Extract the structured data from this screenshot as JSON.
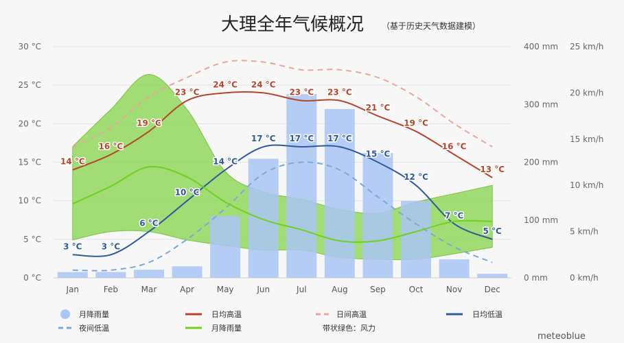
{
  "chart_data": {
    "type": "bar+line",
    "title": "大理全年气候概况",
    "subtitle": "（基于历史天气数据建模）",
    "categories": [
      "Jan",
      "Feb",
      "Mar",
      "Apr",
      "May",
      "Jun",
      "Jul",
      "Aug",
      "Sep",
      "Oct",
      "Nov",
      "Dec"
    ],
    "y_left": {
      "unit": "°C",
      "ticks": [
        "0 °C",
        "5 °C",
        "10 °C",
        "15 °C",
        "20 °C",
        "25 °C",
        "30 °C"
      ],
      "range": [
        0,
        30
      ]
    },
    "y_right1": {
      "unit": "mm",
      "ticks": [
        "0 mm",
        "100 mm",
        "200 mm",
        "300 mm",
        "400 mm"
      ],
      "range": [
        0,
        400
      ]
    },
    "y_right2": {
      "unit": "km/h",
      "ticks": [
        "0 km/h",
        "5 km/h",
        "10 km/h",
        "15 km/h",
        "20 km/h",
        "25 km/h"
      ],
      "range": [
        0,
        25
      ]
    },
    "series": [
      {
        "name": "月降雨量",
        "type": "bar",
        "axis": "mm",
        "color": "#a9c6f5",
        "values": [
          10,
          10,
          14,
          20,
          107,
          206,
          318,
          292,
          216,
          133,
          32,
          7
        ]
      },
      {
        "name": "日均高温",
        "type": "line",
        "axis": "C",
        "color": "#b5442b",
        "labels": true,
        "values": [
          14,
          16,
          19,
          23,
          24,
          24,
          23,
          23,
          21,
          19,
          16,
          13
        ]
      },
      {
        "name": "日间高温",
        "type": "dashed",
        "axis": "C",
        "color": "#eba59b",
        "values": [
          17,
          19.5,
          23.5,
          26,
          28,
          28,
          27,
          27,
          26,
          23.5,
          20,
          17
        ]
      },
      {
        "name": "日均低温",
        "type": "line",
        "axis": "C",
        "color": "#2f5a9a",
        "labels": true,
        "values": [
          3,
          3,
          6,
          10,
          14,
          17,
          17,
          17,
          15,
          12,
          7,
          5
        ]
      },
      {
        "name": "夜间低温",
        "type": "dashed",
        "axis": "C",
        "color": "#7aa8d8",
        "values": [
          1,
          1,
          2,
          5,
          9,
          13.5,
          15,
          14,
          10.5,
          7,
          4,
          2
        ]
      },
      {
        "name": "月降雨量",
        "type": "line",
        "axis": "kmh",
        "color": "#6ed11c",
        "values": [
          8,
          9.9,
          12,
          10.9,
          8.2,
          6.3,
          5.2,
          4,
          4,
          5,
          6.1,
          6.1
        ]
      },
      {
        "name": "风力",
        "type": "band",
        "axis": "kmh",
        "color": "#86d34a",
        "upper": [
          14.2,
          18.2,
          22,
          18.2,
          11.5,
          9.3,
          8.5,
          7.4,
          7,
          8.2,
          9.1,
          10
        ],
        "lower": [
          4.1,
          5,
          5,
          4.1,
          3.5,
          3,
          3,
          2.2,
          2,
          2,
          2.6,
          3.3
        ]
      }
    ],
    "legend": [
      "月降雨量",
      "日均高温",
      "日间高温",
      "日均低温",
      "夜间低温",
      "月降雨量",
      "带状绿色：风力"
    ],
    "legend_placement": "bottom",
    "grid": true
  },
  "footer": {
    "brand": "meteoblue"
  }
}
